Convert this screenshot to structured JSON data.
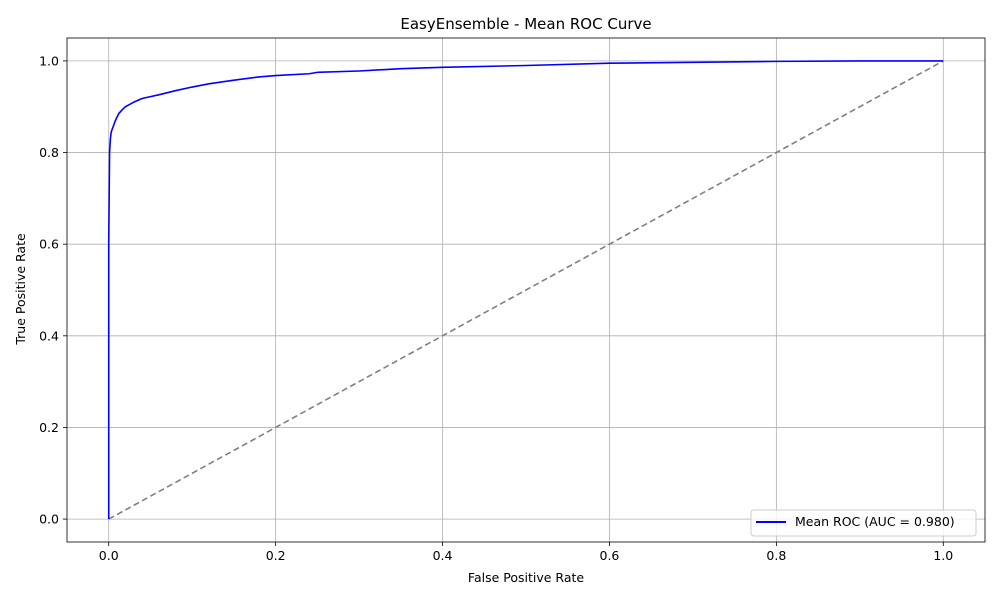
{
  "chart_data": {
    "type": "line",
    "title": "EasyEnsemble - Mean ROC Curve",
    "xlabel": "False Positive Rate",
    "ylabel": "True Positive Rate",
    "xlim": [
      -0.05,
      1.05
    ],
    "ylim": [
      -0.05,
      1.05
    ],
    "grid": true,
    "legend_position": "bottom-right",
    "x_ticks": [
      0.0,
      0.2,
      0.4,
      0.6,
      0.8,
      1.0
    ],
    "y_ticks": [
      0.0,
      0.2,
      0.4,
      0.6,
      0.8,
      1.0
    ],
    "x_tick_labels": [
      "0.0",
      "0.2",
      "0.4",
      "0.6",
      "0.8",
      "1.0"
    ],
    "y_tick_labels": [
      "0.0",
      "0.2",
      "0.4",
      "0.6",
      "0.8",
      "1.0"
    ],
    "series": [
      {
        "name": "Mean ROC (AUC = 0.980)",
        "color": "#0000ff",
        "style": "solid",
        "x": [
          0.0,
          0.0,
          0.001,
          0.002,
          0.003,
          0.005,
          0.008,
          0.012,
          0.016,
          0.02,
          0.03,
          0.04,
          0.05,
          0.06,
          0.08,
          0.1,
          0.12,
          0.15,
          0.18,
          0.2,
          0.24,
          0.25,
          0.3,
          0.35,
          0.4,
          0.5,
          0.6,
          0.7,
          0.8,
          0.9,
          1.0
        ],
        "y": [
          0.0,
          0.6,
          0.8,
          0.83,
          0.845,
          0.855,
          0.87,
          0.885,
          0.893,
          0.9,
          0.91,
          0.918,
          0.922,
          0.926,
          0.935,
          0.943,
          0.95,
          0.958,
          0.965,
          0.968,
          0.972,
          0.975,
          0.978,
          0.983,
          0.986,
          0.99,
          0.995,
          0.997,
          0.999,
          1.0,
          1.0
        ]
      },
      {
        "name": "chance",
        "color": "#808080",
        "style": "dashed",
        "x": [
          0.0,
          1.0
        ],
        "y": [
          0.0,
          1.0
        ]
      }
    ],
    "legend": [
      "Mean ROC (AUC = 0.980)"
    ]
  }
}
